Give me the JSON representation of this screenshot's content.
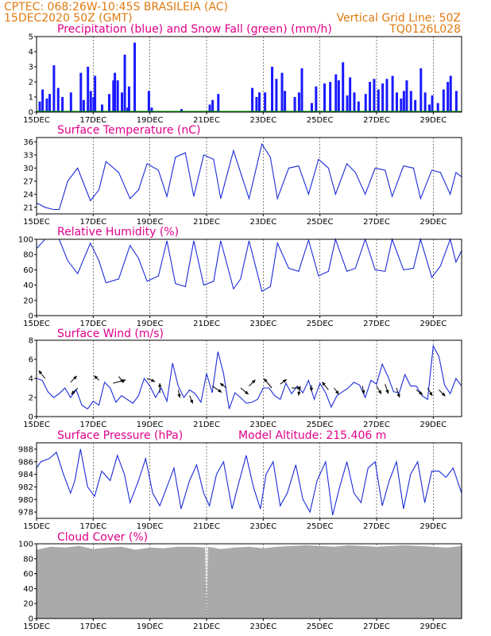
{
  "header": {
    "line1_left": "CPTEC:   068:26W-10:45S   BRASILEIA (AC)",
    "line2_left": "15DEC2020 50Z (GMT)",
    "line2_right": "Vertical Grid Line: 50Z",
    "line3_right": "TQ0126L028"
  },
  "colors": {
    "header": "#e07a10",
    "title": "#e0008a",
    "precip": "#1a1aff",
    "snow": "#00a000",
    "line": "#1c2cd8",
    "wind_arrow": "#000000",
    "cloud": "#aaaaaa",
    "grid": "#000000"
  },
  "x_ticks": [
    "15DEC",
    "17DEC",
    "19DEC",
    "21DEC",
    "23DEC",
    "25DEC",
    "27DEC",
    "29DEC"
  ],
  "chart_data": [
    {
      "type": "bar",
      "title": "Precipitation (blue) and Snow Fall (green) (mm/h)",
      "ylim": [
        0,
        5
      ],
      "yticks": [
        "0",
        "1",
        "2",
        "3",
        "4",
        "5"
      ],
      "x_days": [
        0,
        15
      ],
      "series": [
        {
          "name": "Precipitation",
          "x": [
            0.1,
            0.2,
            0.35,
            0.45,
            0.6,
            0.75,
            0.9,
            1.2,
            1.55,
            1.65,
            1.8,
            1.9,
            2.0,
            2.05,
            2.3,
            2.55,
            2.7,
            2.75,
            2.85,
            3.0,
            3.1,
            3.2,
            3.25,
            3.45,
            3.95,
            4.05,
            5.1,
            6.1,
            6.2,
            6.4,
            7.6,
            7.75,
            7.85,
            8.05,
            8.3,
            8.45,
            8.65,
            8.75,
            9.1,
            9.25,
            9.35,
            9.7,
            9.85,
            10.15,
            10.35,
            10.55,
            10.65,
            10.8,
            10.95,
            11.05,
            11.2,
            11.35,
            11.6,
            11.75,
            11.9,
            12.05,
            12.2,
            12.35,
            12.55,
            12.7,
            12.85,
            12.95,
            13.05,
            13.2,
            13.35,
            13.55,
            13.7,
            13.85,
            13.95,
            14.15,
            14.35,
            14.5,
            14.6,
            14.8
          ],
          "values": [
            0.7,
            1.5,
            0.9,
            1.2,
            3.1,
            1.6,
            1.0,
            1.3,
            2.6,
            0.8,
            3.0,
            1.4,
            1.0,
            2.4,
            0.5,
            1.2,
            2.1,
            2.6,
            2.1,
            1.3,
            3.8,
            0.3,
            1.7,
            4.6,
            1.4,
            0.3,
            0.2,
            0.5,
            0.8,
            1.2,
            1.6,
            1.0,
            1.3,
            1.3,
            3.0,
            2.2,
            2.6,
            1.4,
            1.0,
            1.3,
            2.9,
            0.6,
            1.7,
            1.9,
            2.0,
            2.5,
            2.1,
            3.3,
            1.1,
            2.3,
            1.3,
            0.7,
            1.2,
            2.0,
            2.2,
            1.5,
            1.9,
            2.2,
            2.4,
            1.3,
            0.9,
            1.4,
            2.1,
            1.4,
            0.8,
            2.9,
            1.3,
            0.5,
            1.1,
            0.6,
            1.5,
            2.0,
            2.4,
            1.4
          ]
        },
        {
          "name": "Snow Fall",
          "x": [
            0,
            15
          ],
          "values": [
            0,
            0
          ]
        }
      ]
    },
    {
      "type": "line",
      "title": "Surface Temperature (nC)",
      "ylim": [
        19.5,
        37
      ],
      "yticks": [
        "21",
        "24",
        "27",
        "30",
        "33",
        "36"
      ],
      "x_days": [
        0,
        15
      ],
      "series": [
        {
          "name": "Temperature",
          "x": [
            0,
            0.3,
            0.6,
            0.8,
            1.1,
            1.45,
            1.9,
            2.2,
            2.45,
            2.9,
            3.3,
            3.6,
            3.9,
            4.3,
            4.6,
            4.9,
            5.25,
            5.55,
            5.9,
            6.25,
            6.5,
            6.95,
            7.2,
            7.5,
            7.95,
            8.25,
            8.5,
            8.9,
            9.25,
            9.6,
            9.95,
            10.3,
            10.55,
            10.95,
            11.25,
            11.6,
            11.95,
            12.3,
            12.55,
            12.95,
            13.3,
            13.55,
            13.95,
            14.25,
            14.6,
            14.8,
            15
          ],
          "values": [
            22,
            21,
            20.5,
            20.5,
            27,
            30,
            22.5,
            25,
            31.5,
            29,
            23,
            25,
            31,
            29.5,
            23.5,
            32.5,
            33.5,
            23.5,
            33,
            32,
            23,
            34,
            29,
            23,
            35.5,
            32.5,
            23,
            30,
            30.5,
            24,
            32,
            30,
            24,
            31,
            29,
            24,
            30,
            29.5,
            23.5,
            30.5,
            30,
            23,
            29.5,
            29,
            24,
            29,
            28
          ]
        }
      ]
    },
    {
      "type": "line",
      "title": "Relative Humidity (%)",
      "ylim": [
        0,
        100
      ],
      "yticks": [
        "0",
        "20",
        "40",
        "60",
        "80",
        "100"
      ],
      "x_days": [
        0,
        15
      ],
      "series": [
        {
          "name": "Relative Humidity",
          "x": [
            0,
            0.3,
            0.6,
            0.8,
            1.1,
            1.45,
            1.9,
            2.2,
            2.45,
            2.9,
            3.3,
            3.6,
            3.9,
            4.3,
            4.6,
            4.9,
            5.25,
            5.55,
            5.9,
            6.25,
            6.5,
            6.95,
            7.2,
            7.5,
            7.95,
            8.25,
            8.5,
            8.9,
            9.25,
            9.6,
            9.95,
            10.3,
            10.55,
            10.95,
            11.25,
            11.6,
            11.95,
            12.3,
            12.55,
            12.95,
            13.3,
            13.55,
            13.95,
            14.25,
            14.6,
            14.8,
            15
          ],
          "values": [
            88,
            100,
            100,
            100,
            72,
            55,
            95,
            72,
            43,
            48,
            92,
            75,
            45,
            52,
            98,
            42,
            38,
            98,
            40,
            45,
            98,
            35,
            48,
            98,
            32,
            38,
            95,
            62,
            58,
            99,
            52,
            58,
            100,
            58,
            62,
            100,
            60,
            58,
            100,
            60,
            62,
            100,
            50,
            65,
            100,
            70,
            85
          ]
        }
      ]
    },
    {
      "type": "line",
      "title": "Surface Wind (m/s)",
      "ylim": [
        0,
        8
      ],
      "yticks": [
        "0",
        "2",
        "4",
        "6",
        "8"
      ],
      "x_days": [
        0,
        15
      ],
      "series": [
        {
          "name": "Wind Speed",
          "x": [
            0,
            0.2,
            0.4,
            0.6,
            0.8,
            1.0,
            1.2,
            1.4,
            1.6,
            1.8,
            2.0,
            2.2,
            2.4,
            2.6,
            2.8,
            3.0,
            3.2,
            3.4,
            3.6,
            3.8,
            4.0,
            4.2,
            4.4,
            4.6,
            4.8,
            5.0,
            5.2,
            5.4,
            5.6,
            5.8,
            6.0,
            6.2,
            6.4,
            6.6,
            6.8,
            7.0,
            7.2,
            7.4,
            7.6,
            7.8,
            8.0,
            8.2,
            8.4,
            8.6,
            8.8,
            9.0,
            9.2,
            9.4,
            9.6,
            9.8,
            10.0,
            10.2,
            10.4,
            10.6,
            10.8,
            11.0,
            11.2,
            11.4,
            11.6,
            11.8,
            12.0,
            12.2,
            12.4,
            12.6,
            12.8,
            13.0,
            13.2,
            13.4,
            13.6,
            13.8,
            14.0,
            14.2,
            14.4,
            14.6,
            14.8,
            15.0
          ],
          "values": [
            4,
            3.8,
            2.6,
            2,
            2.4,
            3,
            2,
            2.8,
            1.2,
            0.8,
            1.6,
            1.2,
            3.6,
            3,
            1.5,
            2.2,
            1.8,
            1.4,
            2.2,
            4,
            3.2,
            2,
            3,
            1.6,
            5.6,
            3.2,
            2,
            2.8,
            2.4,
            1.5,
            4.5,
            2.5,
            6.8,
            4.5,
            0.8,
            2.5,
            2,
            1.4,
            1.5,
            1.8,
            3,
            3,
            2.2,
            1.8,
            3.5,
            2.4,
            3.2,
            2.5,
            3.8,
            1.8,
            3.5,
            2.5,
            1,
            2.2,
            2.6,
            3,
            3.6,
            3.3,
            2,
            3.8,
            3.4,
            5.5,
            4.2,
            2.6,
            2.5,
            4.4,
            3.2,
            3.2,
            2.2,
            1.8,
            7.4,
            6.3,
            3.3,
            2.4,
            4,
            3.2
          ]
        }
      ],
      "arrows": [
        {
          "x": 0.3,
          "speed": 4.0,
          "dx": -0.4,
          "dy": -0.5
        },
        {
          "x": 1.2,
          "speed": 3.6,
          "dx": 0.4,
          "dy": -0.4
        },
        {
          "x": 1.45,
          "speed": 3.0,
          "dx": -0.4,
          "dy": 0.4
        },
        {
          "x": 2.2,
          "speed": 3.8,
          "dx": -0.3,
          "dy": -0.3
        },
        {
          "x": 2.7,
          "speed": 3.5,
          "dx": 0.8,
          "dy": -0.2
        },
        {
          "x": 2.9,
          "speed": 4.2,
          "dx": 0.3,
          "dy": 0.4
        },
        {
          "x": 3.9,
          "speed": 4.0,
          "dx": 0.5,
          "dy": 0.2
        },
        {
          "x": 4.35,
          "speed": 2.5,
          "dx": 0.0,
          "dy": -0.6
        },
        {
          "x": 5.0,
          "speed": 2.8,
          "dx": 0.1,
          "dy": 0.5
        },
        {
          "x": 5.4,
          "speed": 2.2,
          "dx": 0.2,
          "dy": 0.5
        },
        {
          "x": 6.2,
          "speed": 3.2,
          "dx": 0.6,
          "dy": 0.4
        },
        {
          "x": 6.7,
          "speed": 3.0,
          "dx": -0.4,
          "dy": -0.3
        },
        {
          "x": 7.2,
          "speed": 3.0,
          "dx": 0.5,
          "dy": 0.4
        },
        {
          "x": 7.5,
          "speed": 3.2,
          "dx": 0.4,
          "dy": -0.4
        },
        {
          "x": 8.3,
          "speed": 3.0,
          "dx": -0.5,
          "dy": -0.6
        },
        {
          "x": 8.6,
          "speed": 3.4,
          "dx": 0.4,
          "dy": -0.3
        },
        {
          "x": 9.0,
          "speed": 3.0,
          "dx": 0.6,
          "dy": 0.0
        },
        {
          "x": 9.3,
          "speed": 3.2,
          "dx": -0.1,
          "dy": 0.6
        },
        {
          "x": 9.7,
          "speed": 3.3,
          "dx": 0.0,
          "dy": 0.4
        },
        {
          "x": 10.3,
          "speed": 2.8,
          "dx": -0.4,
          "dy": -0.5
        },
        {
          "x": 10.5,
          "speed": 3.0,
          "dx": 0.3,
          "dy": 0.4
        },
        {
          "x": 11.5,
          "speed": 3.2,
          "dx": 0.1,
          "dy": 0.5
        },
        {
          "x": 12.0,
          "speed": 3.2,
          "dx": 0.3,
          "dy": 0.5
        },
        {
          "x": 12.3,
          "speed": 3.4,
          "dx": 0.2,
          "dy": 0.6
        },
        {
          "x": 12.7,
          "speed": 3.0,
          "dx": 0.2,
          "dy": 0.6
        },
        {
          "x": 13.4,
          "speed": 2.8,
          "dx": 0.4,
          "dy": 0.3
        },
        {
          "x": 13.8,
          "speed": 3.0,
          "dx": 0.3,
          "dy": 0.5
        },
        {
          "x": 14.2,
          "speed": 2.8,
          "dx": 0.4,
          "dy": 0.4
        }
      ]
    },
    {
      "type": "line",
      "title": "Surface Pressure (hPa)",
      "annotation": "Model Altitude: 215.406 m",
      "ylim": [
        977,
        989
      ],
      "yticks": [
        "978",
        "980",
        "982",
        "984",
        "986",
        "988"
      ],
      "x_days": [
        0,
        15
      ],
      "series": [
        {
          "name": "Surface Pressure",
          "x": [
            0,
            0.15,
            0.45,
            0.7,
            0.95,
            1.2,
            1.35,
            1.55,
            1.8,
            2.05,
            2.3,
            2.6,
            2.85,
            3.1,
            3.3,
            3.6,
            3.85,
            4.1,
            4.35,
            4.6,
            4.85,
            5.1,
            5.4,
            5.65,
            5.9,
            6.1,
            6.35,
            6.6,
            6.9,
            7.1,
            7.4,
            7.65,
            7.9,
            8.1,
            8.35,
            8.6,
            8.85,
            9.15,
            9.4,
            9.65,
            9.9,
            10.2,
            10.45,
            10.7,
            10.95,
            11.2,
            11.45,
            11.7,
            11.95,
            12.2,
            12.45,
            12.7,
            12.95,
            13.2,
            13.45,
            13.7,
            13.95,
            14.2,
            14.45,
            14.7,
            15
          ],
          "values": [
            985,
            986,
            986.5,
            987.5,
            984,
            981,
            983,
            988,
            982,
            980.5,
            984.5,
            983,
            987,
            984,
            979.5,
            983,
            986.5,
            981,
            979,
            982,
            985,
            978.5,
            983,
            985.5,
            981,
            979,
            984,
            986,
            978.5,
            982,
            987,
            982,
            978.5,
            984,
            986,
            979,
            981,
            985.5,
            980,
            978,
            983,
            986,
            977.5,
            982,
            986,
            981,
            979.5,
            985,
            986,
            979,
            983,
            986,
            978.5,
            984,
            986,
            979.5,
            984.5,
            984.5,
            983.5,
            985,
            981
          ]
        }
      ]
    },
    {
      "type": "area",
      "title": "Cloud Cover (%)",
      "ylim": [
        0,
        100
      ],
      "yticks": [
        "0",
        "20",
        "40",
        "60",
        "80",
        "100"
      ],
      "x_days": [
        0,
        15
      ],
      "series": [
        {
          "name": "Cloud Cover",
          "x": [
            0,
            0.5,
            1.0,
            1.5,
            2.0,
            2.5,
            3.0,
            3.5,
            4.0,
            4.5,
            5.0,
            5.5,
            5.95,
            6.0,
            6.05,
            6.5,
            7.0,
            7.5,
            8.0,
            8.5,
            9.0,
            9.5,
            10.0,
            10.5,
            11.0,
            11.5,
            12.0,
            12.5,
            13.0,
            13.5,
            14.0,
            14.5,
            15.0
          ],
          "values": [
            92,
            96,
            95,
            97,
            93,
            95,
            96,
            92,
            95,
            94,
            96,
            96,
            95,
            0,
            96,
            93,
            95,
            96,
            94,
            96,
            97,
            98,
            97,
            96,
            98,
            97,
            96,
            97,
            98,
            97,
            96,
            95,
            97
          ]
        }
      ]
    }
  ]
}
